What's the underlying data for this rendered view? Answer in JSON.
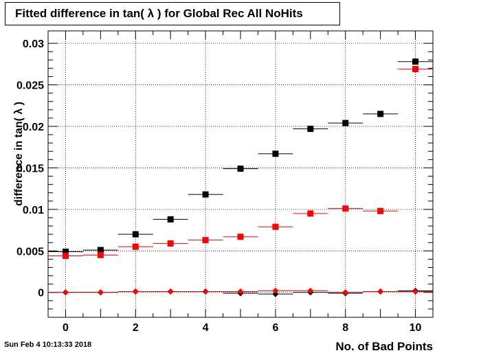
{
  "chart_data": {
    "type": "scatter",
    "title": "Fitted difference in tan( λ ) for Global Rec All NoHits",
    "xlabel": "No. of Bad Points",
    "ylabel": "difference in tan( λ )",
    "xlim": [
      -0.5,
      10.5
    ],
    "ylim": [
      -0.003,
      0.0315
    ],
    "grid": true,
    "x_ticks": [
      0,
      2,
      4,
      6,
      8,
      10
    ],
    "y_ticks": [
      0,
      0.005,
      0.01,
      0.015,
      0.02,
      0.025,
      0.03
    ],
    "y_tick_labels": [
      "0",
      "0.005",
      "0.01",
      "0.015",
      "0.02",
      "0.025",
      "0.03"
    ],
    "x": [
      0,
      1,
      2,
      3,
      4,
      5,
      6,
      7,
      8,
      9,
      10
    ],
    "series": [
      {
        "marker": "square",
        "color": "#000000",
        "values": [
          0.0049,
          0.0051,
          0.007,
          0.0088,
          0.0118,
          0.0149,
          0.0167,
          0.0197,
          0.0204,
          0.0215,
          0.0278
        ]
      },
      {
        "marker": "square",
        "color": "#ff0000",
        "values": [
          0.0044,
          0.0045,
          0.0055,
          0.0059,
          0.0063,
          0.0067,
          0.0079,
          0.0095,
          0.0101,
          0.0098,
          0.0269
        ]
      },
      {
        "marker": "diamond",
        "color": "#000000",
        "values": [
          0.0,
          0.0,
          0.0001,
          0.0001,
          0.0001,
          -0.0001,
          -0.0002,
          0.0,
          -0.0001,
          0.0001,
          0.0002
        ]
      },
      {
        "marker": "diamond",
        "color": "#ff0000",
        "values": [
          0.0,
          0.0,
          0.0001,
          0.0001,
          0.0001,
          0.0001,
          0.0002,
          0.0002,
          0.0,
          0.0001,
          0.0001
        ]
      }
    ]
  },
  "timestamp": "Sun Feb  4 10:13:33 2018"
}
